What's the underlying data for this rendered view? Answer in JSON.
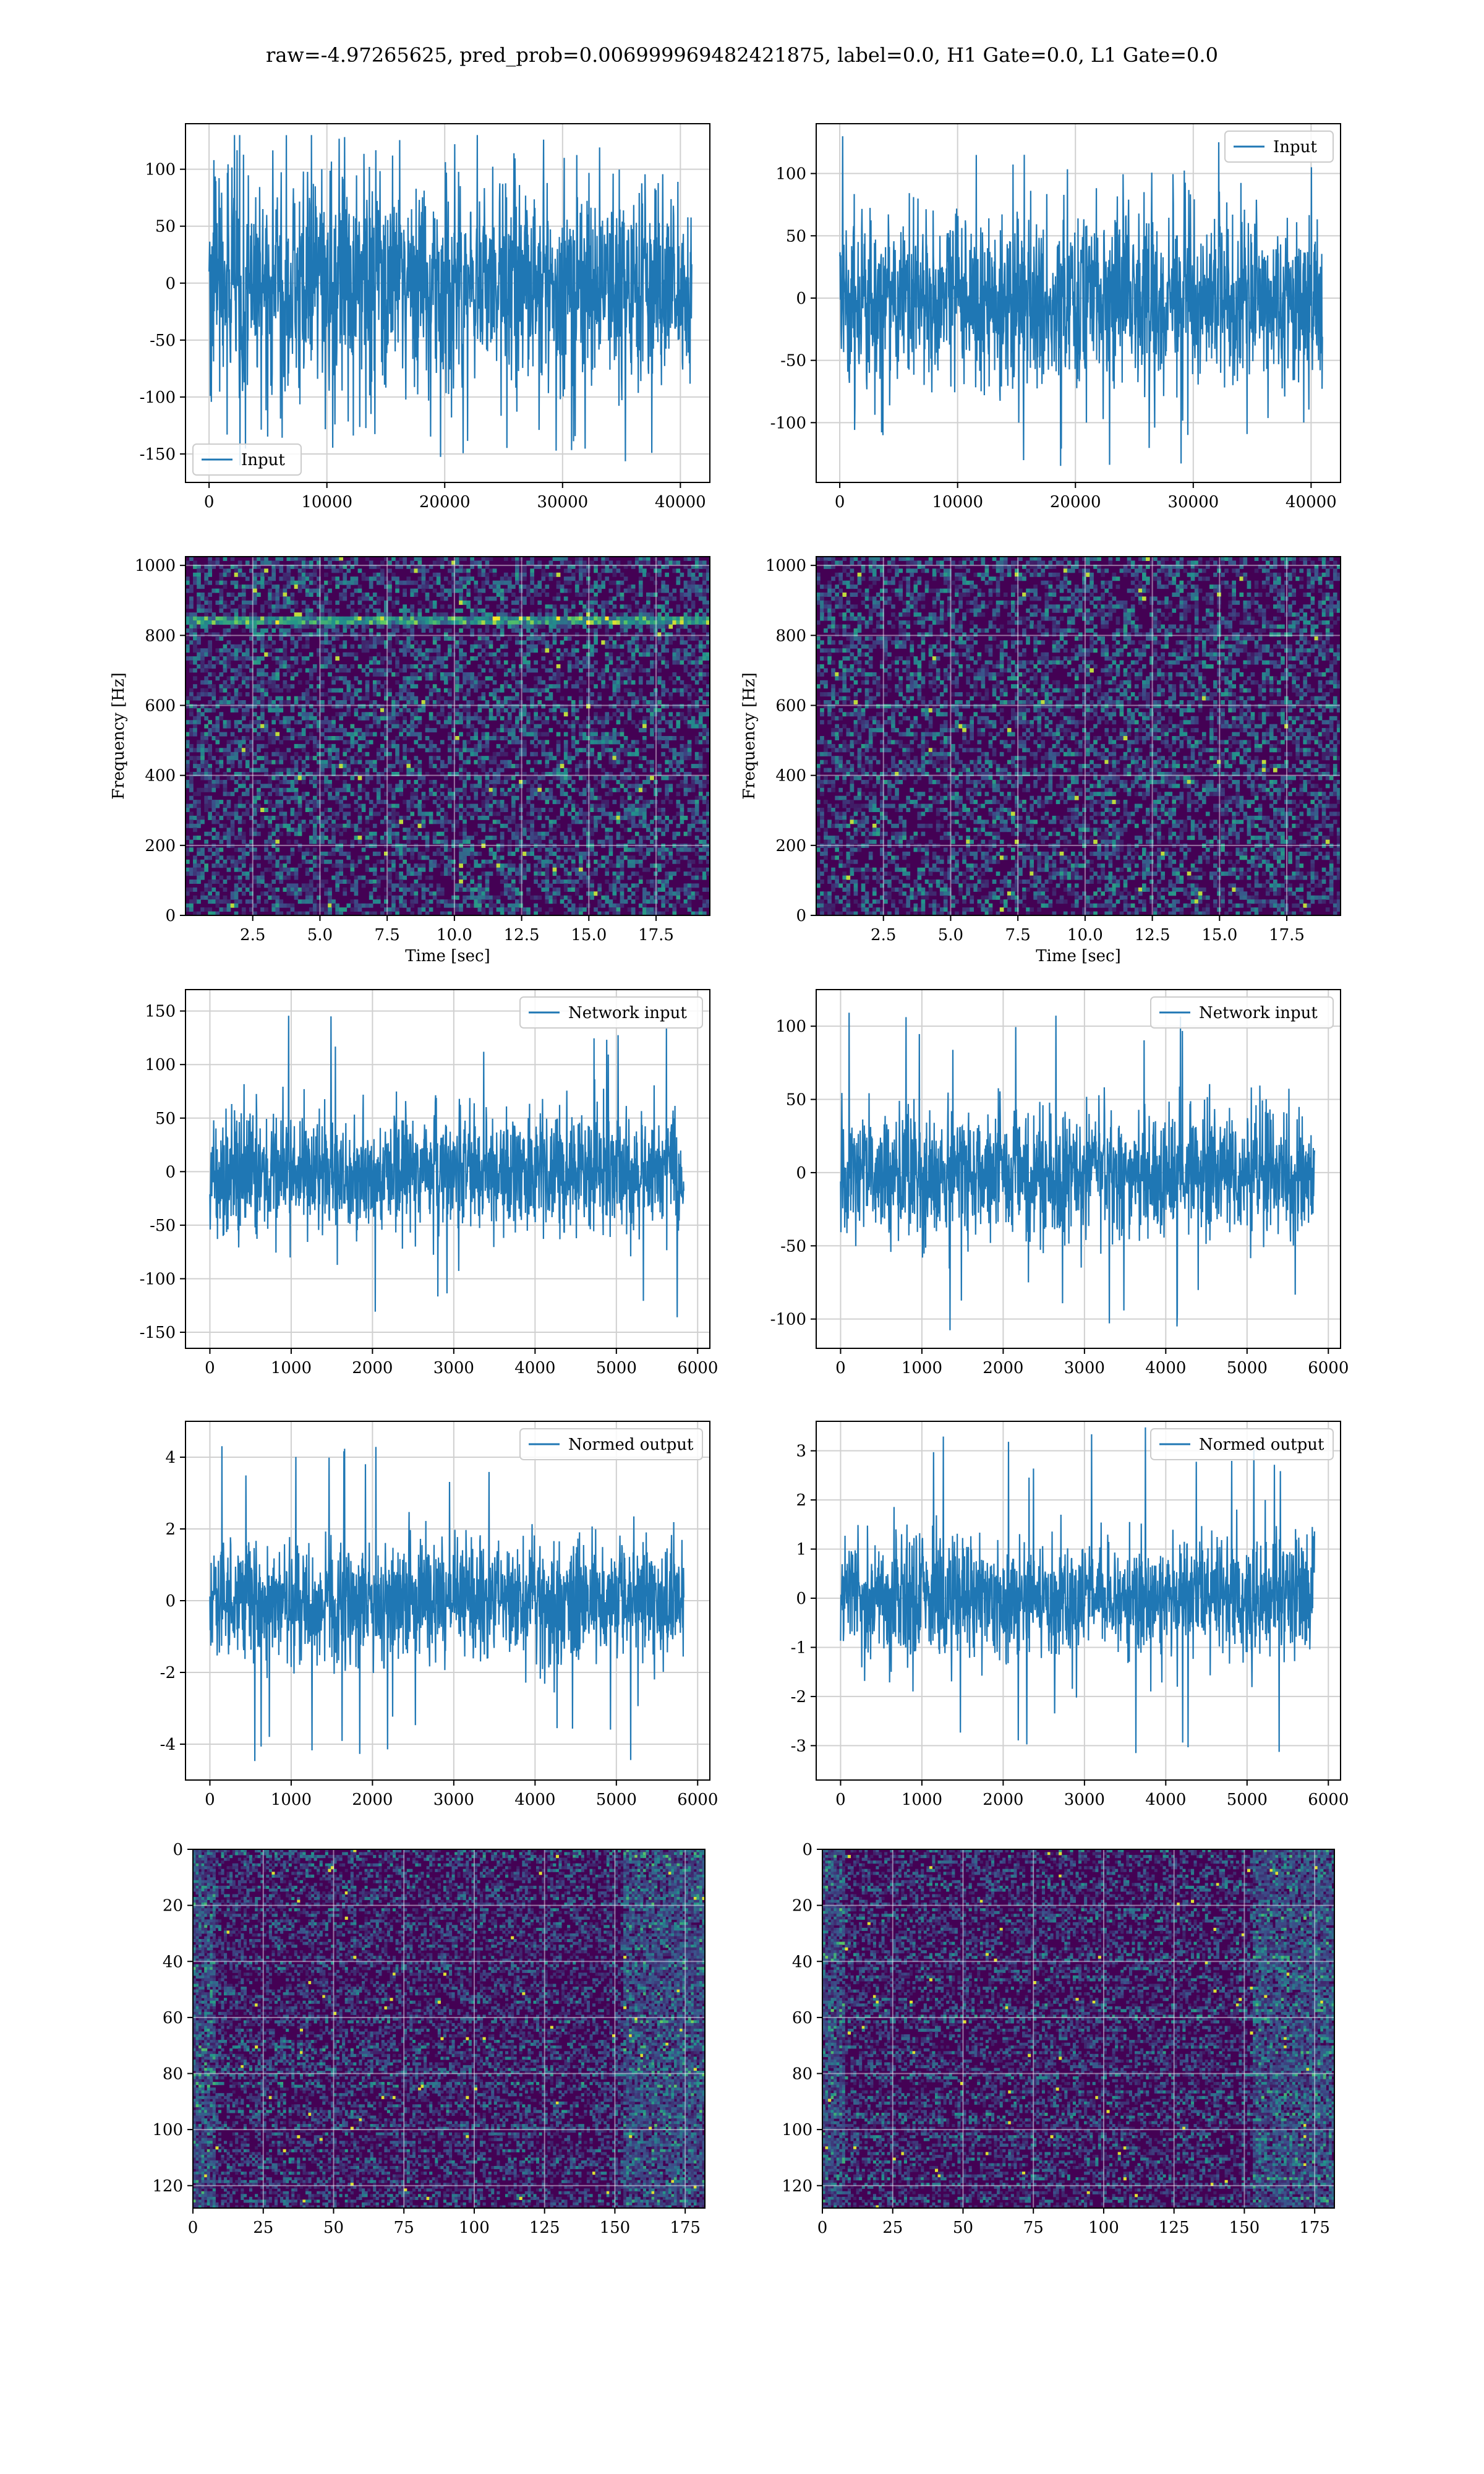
{
  "title": "raw=-4.97265625, pred_prob=0.006999969482421875, label=0.0, H1 Gate=0.0, L1 Gate=0.0",
  "colors": {
    "series": "#1f77b4",
    "grid": "#d0d0d0",
    "viridis_dark": "#440154",
    "viridis_mid": "#31688e",
    "viridis_green": "#35b779",
    "viridis_yellow": "#fde725"
  },
  "chart_data": [
    {
      "type": "line",
      "panel": "row1-left",
      "series": [
        {
          "name": "Input",
          "values": "noise"
        }
      ],
      "xlim": [
        -2000,
        42500
      ],
      "ylim": [
        -175,
        140
      ],
      "xticks": [
        0,
        10000,
        20000,
        30000,
        40000
      ],
      "yticks": [
        -150,
        -100,
        -50,
        0,
        50,
        100
      ],
      "x_extent": [
        0,
        40960
      ],
      "amplitude": 75,
      "extremes": [
        -160,
        130
      ],
      "legend": "lower left",
      "grid": true
    },
    {
      "type": "line",
      "panel": "row1-right",
      "series": [
        {
          "name": "Input",
          "values": "noise"
        }
      ],
      "xlim": [
        -2000,
        42500
      ],
      "ylim": [
        -148,
        140
      ],
      "xticks": [
        0,
        10000,
        20000,
        30000,
        40000
      ],
      "yticks": [
        -100,
        -50,
        0,
        50,
        100
      ],
      "x_extent": [
        0,
        40960
      ],
      "amplitude": 55,
      "extremes": [
        -135,
        130
      ],
      "legend": "upper right",
      "grid": true
    },
    {
      "type": "heatmap",
      "panel": "row2-left",
      "xlabel": "Time [sec]",
      "ylabel": "Frequency [Hz]",
      "xlim": [
        0,
        19.5
      ],
      "ylim": [
        0,
        1025
      ],
      "xticks": [
        2.5,
        5.0,
        7.5,
        10.0,
        12.5,
        15.0,
        17.5
      ],
      "yticks": [
        0,
        200,
        400,
        600,
        800,
        1000
      ],
      "bright_lines": [
        840
      ],
      "grid": true
    },
    {
      "type": "heatmap",
      "panel": "row2-right",
      "xlabel": "Time [sec]",
      "ylabel": "Frequency [Hz]",
      "xlim": [
        0,
        19.5
      ],
      "ylim": [
        0,
        1025
      ],
      "xticks": [
        2.5,
        5.0,
        7.5,
        10.0,
        12.5,
        15.0,
        17.5
      ],
      "yticks": [
        0,
        200,
        400,
        600,
        800,
        1000
      ],
      "bright_lines": [],
      "grid": true
    },
    {
      "type": "line",
      "panel": "row3-left",
      "series": [
        {
          "name": "Network input",
          "values": "noise"
        }
      ],
      "xlim": [
        -300,
        6150
      ],
      "ylim": [
        -165,
        170
      ],
      "xticks": [
        0,
        1000,
        2000,
        3000,
        4000,
        5000,
        6000
      ],
      "yticks": [
        -150,
        -100,
        -50,
        0,
        50,
        100,
        150
      ],
      "x_extent": [
        0,
        5830
      ],
      "amplitude": 45,
      "extremes": [
        -150,
        155
      ],
      "legend": "upper right",
      "grid": true
    },
    {
      "type": "line",
      "panel": "row3-right",
      "series": [
        {
          "name": "Network input",
          "values": "noise"
        }
      ],
      "xlim": [
        -300,
        6150
      ],
      "ylim": [
        -120,
        125
      ],
      "xticks": [
        0,
        1000,
        2000,
        3000,
        4000,
        5000,
        6000
      ],
      "yticks": [
        -100,
        -50,
        0,
        50,
        100
      ],
      "x_extent": [
        0,
        5830
      ],
      "amplitude": 35,
      "extremes": [
        -110,
        112
      ],
      "legend": "upper right",
      "grid": true
    },
    {
      "type": "line",
      "panel": "row4-left",
      "series": [
        {
          "name": "Normed output",
          "values": "noise"
        }
      ],
      "xlim": [
        -300,
        6150
      ],
      "ylim": [
        -5.0,
        5.0
      ],
      "xticks": [
        0,
        1000,
        2000,
        3000,
        4000,
        5000,
        6000
      ],
      "yticks": [
        -4,
        -2,
        0,
        2,
        4
      ],
      "x_extent": [
        0,
        5830
      ],
      "amplitude": 1.3,
      "extremes": [
        -4.5,
        4.4
      ],
      "legend": "upper right",
      "grid": true
    },
    {
      "type": "line",
      "panel": "row4-right",
      "series": [
        {
          "name": "Normed output",
          "values": "noise"
        }
      ],
      "xlim": [
        -300,
        6150
      ],
      "ylim": [
        -3.7,
        3.6
      ],
      "xticks": [
        0,
        1000,
        2000,
        3000,
        4000,
        5000,
        6000
      ],
      "yticks": [
        -3,
        -2,
        -1,
        0,
        1,
        2,
        3
      ],
      "x_extent": [
        0,
        5830
      ],
      "amplitude": 1.0,
      "extremes": [
        -3.3,
        3.5
      ],
      "legend": "upper right",
      "grid": true
    },
    {
      "type": "heatmap",
      "panel": "row5-left",
      "xlim": [
        0,
        182
      ],
      "ylim": [
        128,
        0
      ],
      "xticks": [
        0,
        25,
        50,
        75,
        100,
        125,
        150,
        175
      ],
      "yticks": [
        0,
        20,
        40,
        60,
        80,
        100,
        120
      ],
      "grid": true
    },
    {
      "type": "heatmap",
      "panel": "row5-right",
      "xlim": [
        0,
        182
      ],
      "ylim": [
        128,
        0
      ],
      "xticks": [
        0,
        25,
        50,
        75,
        100,
        125,
        150,
        175
      ],
      "yticks": [
        0,
        20,
        40,
        60,
        80,
        100,
        120
      ],
      "grid": true
    }
  ]
}
